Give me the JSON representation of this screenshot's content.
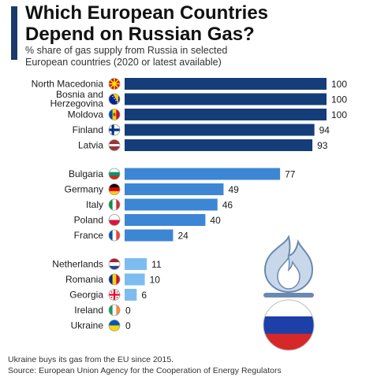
{
  "header": {
    "title_line1": "Which European Countries",
    "title_line2": "Depend on Russian Gas?",
    "subtitle_line1": "% share of gas supply from Russia in selected",
    "subtitle_line2": "European countries (2020 or latest available)"
  },
  "footer": {
    "note": "Ukraine buys its gas from the EU since 2015.",
    "source": "Source: European Union Agency for the Cooperation of Energy Regulators"
  },
  "colors": {
    "group_high": "#143d7a",
    "group_mid": "#3d86d4",
    "group_low": "#7ebcf0",
    "accent": "#1b3a6b"
  },
  "chart_data": {
    "type": "bar",
    "orientation": "horizontal",
    "xlim": [
      0,
      100
    ],
    "grid": false,
    "groups": [
      {
        "categories": [
          {
            "lines": [
              "North Macedonia"
            ],
            "flag": "north-macedonia"
          },
          {
            "lines": [
              "Bosnia and",
              "Herzegovina"
            ],
            "flag": "bosnia-herzegovina"
          },
          {
            "lines": [
              "Moldova"
            ],
            "flag": "moldova"
          },
          {
            "lines": [
              "Finland"
            ],
            "flag": "finland"
          },
          {
            "lines": [
              "Latvia"
            ],
            "flag": "latvia"
          }
        ],
        "values": [
          100,
          100,
          100,
          94,
          93
        ],
        "color": "#143d7a"
      },
      {
        "categories": [
          {
            "lines": [
              "Bulgaria"
            ],
            "flag": "bulgaria"
          },
          {
            "lines": [
              "Germany"
            ],
            "flag": "germany"
          },
          {
            "lines": [
              "Italy"
            ],
            "flag": "italy"
          },
          {
            "lines": [
              "Poland"
            ],
            "flag": "poland"
          },
          {
            "lines": [
              "France"
            ],
            "flag": "france"
          }
        ],
        "values": [
          77,
          49,
          46,
          40,
          24
        ],
        "color": "#3d86d4"
      },
      {
        "categories": [
          {
            "lines": [
              "Netherlands"
            ],
            "flag": "netherlands"
          },
          {
            "lines": [
              "Romania"
            ],
            "flag": "romania"
          },
          {
            "lines": [
              "Georgia"
            ],
            "flag": "georgia"
          },
          {
            "lines": [
              "Ireland"
            ],
            "flag": "ireland"
          },
          {
            "lines": [
              "Ukraine"
            ],
            "flag": "ukraine"
          }
        ],
        "values": [
          11,
          10,
          6,
          0,
          0
        ],
        "color": "#7ebcf0"
      }
    ]
  },
  "illustration": {
    "icon": "gas-flame-russian-flag-icon"
  }
}
